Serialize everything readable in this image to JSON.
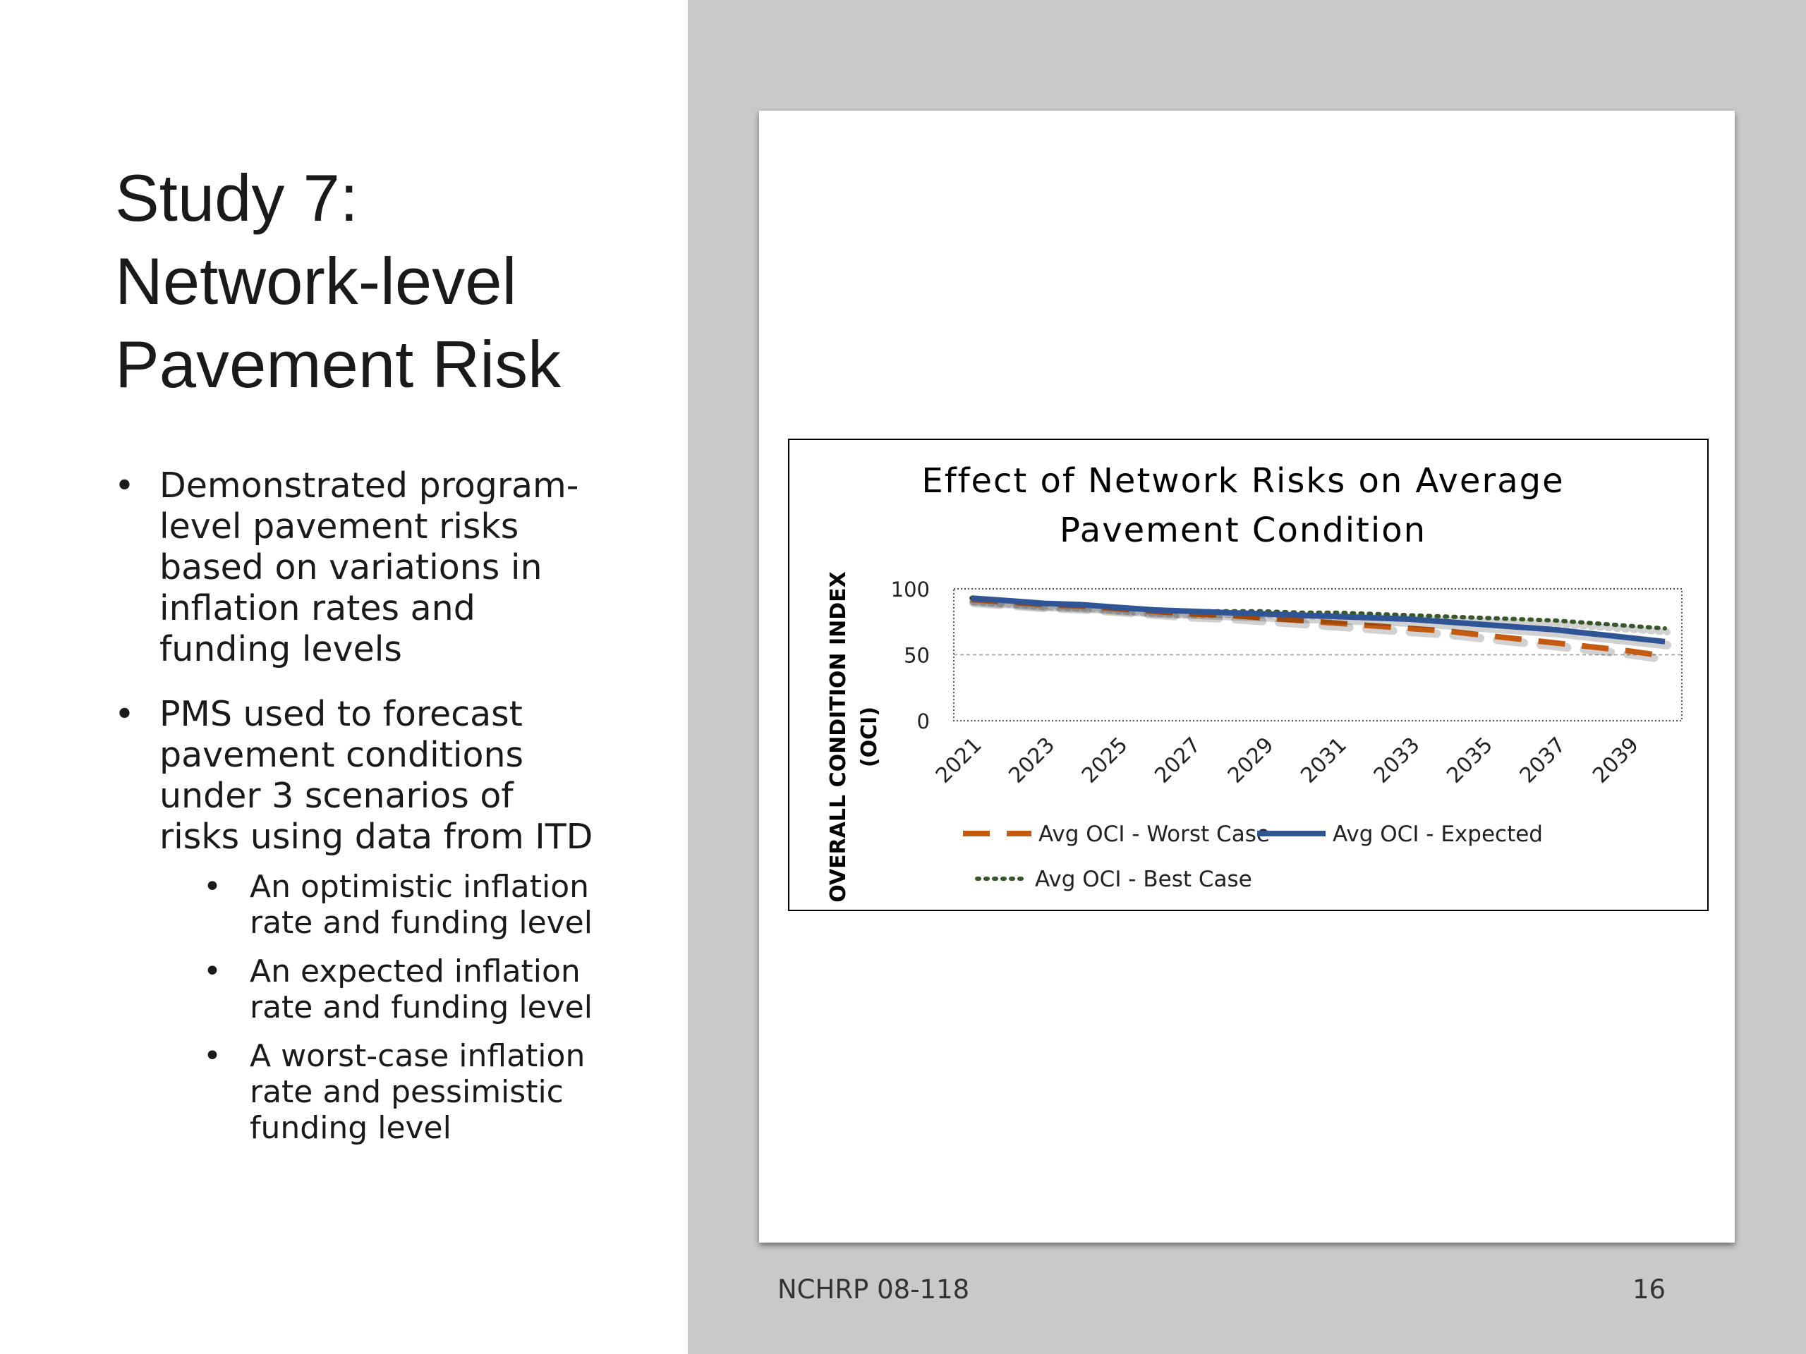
{
  "slide": {
    "title_lines": [
      "Study 7:",
      "Network-level",
      "Pavement Risk"
    ],
    "bullets": [
      {
        "lines": [
          "Demonstrated program-",
          "level pavement risks",
          "based on variations in",
          "inflation rates and",
          "funding levels"
        ]
      },
      {
        "lines": [
          "PMS used to forecast",
          "pavement conditions",
          "under 3 scenarios of",
          "risks using data from ITD"
        ]
      }
    ],
    "sub_bullets": [
      {
        "lines": [
          "An optimistic inflation",
          "rate and funding level"
        ]
      },
      {
        "lines": [
          "An expected inflation",
          "rate and funding level"
        ]
      },
      {
        "lines": [
          "A worst-case inflation",
          "rate and pessimistic",
          "funding level"
        ]
      }
    ],
    "footer_left": "NCHRP 08-118",
    "footer_right": "16"
  },
  "chart_data": {
    "type": "line",
    "title_lines": [
      "Effect of Network Risks on Average",
      "Pavement Condition"
    ],
    "ylabel_lines": [
      "OVERALL CONDITION INDEX",
      "(OCI)"
    ],
    "xlabel": "",
    "ylim": [
      0,
      100
    ],
    "yticks": [
      0,
      50,
      100
    ],
    "x": [
      2021,
      2022,
      2023,
      2024,
      2025,
      2026,
      2027,
      2028,
      2029,
      2030,
      2031,
      2032,
      2033,
      2034,
      2035,
      2036,
      2037,
      2038,
      2039,
      2040
    ],
    "xtick_labels": [
      "2021",
      "2023",
      "2025",
      "2027",
      "2029",
      "2031",
      "2033",
      "2035",
      "2037",
      "2039"
    ],
    "series": [
      {
        "name": "Avg OCI - Worst Case",
        "color": "#c55a11",
        "style": "dashed",
        "values": [
          92,
          90,
          88,
          87,
          85,
          83,
          81,
          80,
          78,
          76,
          74,
          72,
          70,
          68,
          65,
          62,
          59,
          56,
          53,
          49
        ]
      },
      {
        "name": "Avg OCI - Expected",
        "color": "#2f5597",
        "style": "solid",
        "values": [
          93,
          91,
          89,
          88,
          86,
          84,
          83,
          82,
          81,
          80,
          79,
          78,
          77,
          75,
          73,
          71,
          69,
          66,
          63,
          60
        ]
      },
      {
        "name": "Avg OCI - Best Case",
        "color": "#38572a",
        "style": "dotted",
        "values": [
          93,
          91,
          89,
          88,
          86,
          84,
          83,
          83,
          83,
          82,
          82,
          81,
          80,
          79,
          78,
          77,
          76,
          74,
          72,
          70
        ]
      }
    ],
    "grid": "horizontal dashed at 50",
    "legend_placement": "bottom"
  }
}
